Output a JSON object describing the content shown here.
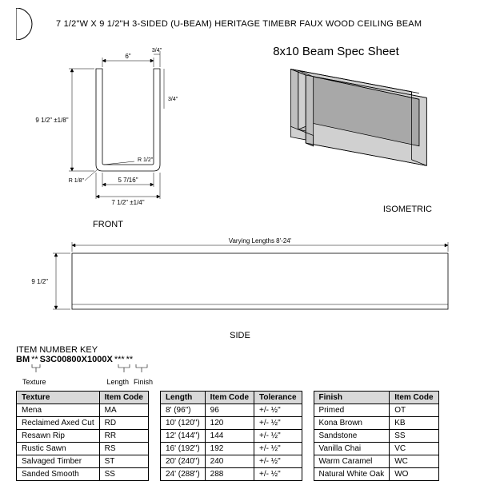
{
  "header": {
    "title": "7 1/2\"W X 9 1/2\"H 3-SIDED (U-BEAM) HERITAGE TIMEBR FAUX WOOD CEILING BEAM"
  },
  "spec_sheet_title": "8x10 Beam Spec Sheet",
  "front_view": {
    "label": "FRONT",
    "dims": {
      "top_inside": "6\"",
      "top_side": "3/4\"",
      "height_overall": "9 1/2\" ±1/8\"",
      "thickness": "3/4\"",
      "inside_radius": "R 1/2\"",
      "outside_radius": "R 1/8\"",
      "bottom_inner": "5 7/16\"",
      "bottom_overall": "7 1/2\" ±1/4\""
    }
  },
  "iso_view": {
    "label": "ISOMETRIC"
  },
  "side_view": {
    "label": "SIDE",
    "length_note": "Varying Lengths 8'-24'",
    "height_dim": "9 1/2\""
  },
  "item_key": {
    "heading": "ITEM NUMBER KEY",
    "prefix": "BM",
    "mid": "S3C00800X1000X",
    "sub_texture": "Texture",
    "sub_length": "Length",
    "sub_finish": "Finish"
  },
  "tables": {
    "texture": {
      "headers": [
        "Texture",
        "Item Code"
      ],
      "rows": [
        [
          "Mena",
          "MA"
        ],
        [
          "Reclaimed Axed Cut",
          "RD"
        ],
        [
          "Resawn Rip",
          "RR"
        ],
        [
          "Rustic Sawn",
          "RS"
        ],
        [
          "Salvaged Timber",
          "ST"
        ],
        [
          "Sanded Smooth",
          "SS"
        ]
      ]
    },
    "length": {
      "headers": [
        "Length",
        "Item Code",
        "Tolerance"
      ],
      "rows": [
        [
          "8' (96\")",
          "96",
          "+/- ½\""
        ],
        [
          "10' (120\")",
          "120",
          "+/- ½\""
        ],
        [
          "12' (144\")",
          "144",
          "+/- ½\""
        ],
        [
          "16' (192\")",
          "192",
          "+/- ½\""
        ],
        [
          "20' (240\")",
          "240",
          "+/- ½\""
        ],
        [
          "24' (288\")",
          "288",
          "+/- ½\""
        ]
      ]
    },
    "finish": {
      "headers": [
        "Finish",
        "Item Code"
      ],
      "rows": [
        [
          "Primed",
          "OT"
        ],
        [
          "Kona Brown",
          "KB"
        ],
        [
          "Sandstone",
          "SS"
        ],
        [
          "Vanilla Chai",
          "VC"
        ],
        [
          "Warm Caramel",
          "WC"
        ],
        [
          "Natural White Oak",
          "WO"
        ]
      ]
    }
  },
  "colors": {
    "outline": "#000000",
    "fill_light": "#d0d0d0",
    "fill_mid": "#bfbfbf",
    "fill_dark": "#a8a8a8",
    "dim_line": "#000000"
  }
}
